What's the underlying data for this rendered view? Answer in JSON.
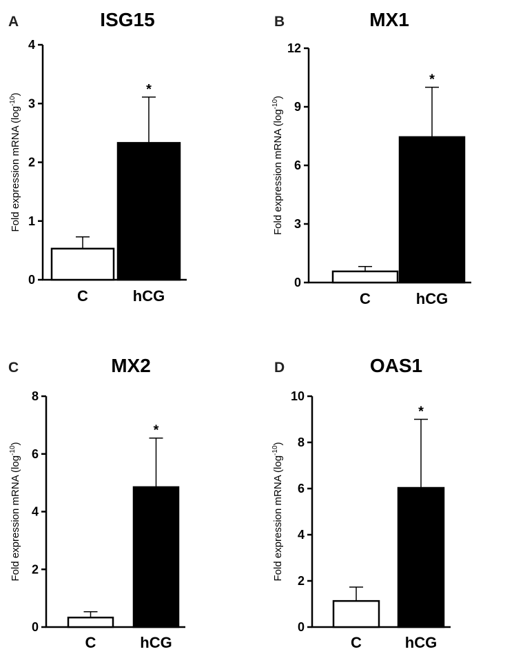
{
  "colors": {
    "axis": "#000000",
    "bar_c": "#ffffff",
    "bar_hcg": "#000000"
  },
  "chart_data": [
    {
      "letter": "A",
      "title": "ISG15",
      "type": "bar",
      "ylabel": "Fold expression mRNA (log",
      "ylabel_sup": "-10",
      "ylabel_close": ")",
      "ylim": [
        0,
        4
      ],
      "yticks": [
        "0",
        "1",
        "2",
        "3",
        "4"
      ],
      "categories": [
        "C",
        "hCG"
      ],
      "values": [
        0.53,
        2.33
      ],
      "errors": [
        0.2,
        0.78
      ],
      "significance": [
        "",
        "*"
      ]
    },
    {
      "letter": "B",
      "title": "MX1",
      "type": "bar",
      "ylabel": "Fold expression mRNA (log",
      "ylabel_sup": "-10",
      "ylabel_close": ")",
      "ylim": [
        0,
        12
      ],
      "yticks": [
        "0",
        "3",
        "6",
        "9",
        "12"
      ],
      "categories": [
        "C",
        "hCG"
      ],
      "values": [
        0.57,
        7.45
      ],
      "errors": [
        0.25,
        2.55
      ],
      "significance": [
        "",
        "*"
      ]
    },
    {
      "letter": "C",
      "title": "MX2",
      "type": "bar",
      "ylabel": "Fold expression mRNA (log",
      "ylabel_sup": "-10",
      "ylabel_close": ")",
      "ylim": [
        0,
        8
      ],
      "yticks": [
        "0",
        "2",
        "4",
        "6",
        "8"
      ],
      "categories": [
        "C",
        "hCG"
      ],
      "values": [
        0.33,
        4.85
      ],
      "errors": [
        0.2,
        1.7
      ],
      "significance": [
        "",
        "*"
      ]
    },
    {
      "letter": "D",
      "title": "OAS1",
      "type": "bar",
      "ylabel": "Fold expression mRNA (log",
      "ylabel_sup": "-10",
      "ylabel_close": ")",
      "ylim": [
        0,
        10
      ],
      "yticks": [
        "0",
        "2",
        "4",
        "6",
        "8",
        "10"
      ],
      "categories": [
        "C",
        "hCG"
      ],
      "values": [
        1.13,
        6.03
      ],
      "errors": [
        0.6,
        2.97
      ],
      "significance": [
        "",
        "*"
      ]
    }
  ]
}
